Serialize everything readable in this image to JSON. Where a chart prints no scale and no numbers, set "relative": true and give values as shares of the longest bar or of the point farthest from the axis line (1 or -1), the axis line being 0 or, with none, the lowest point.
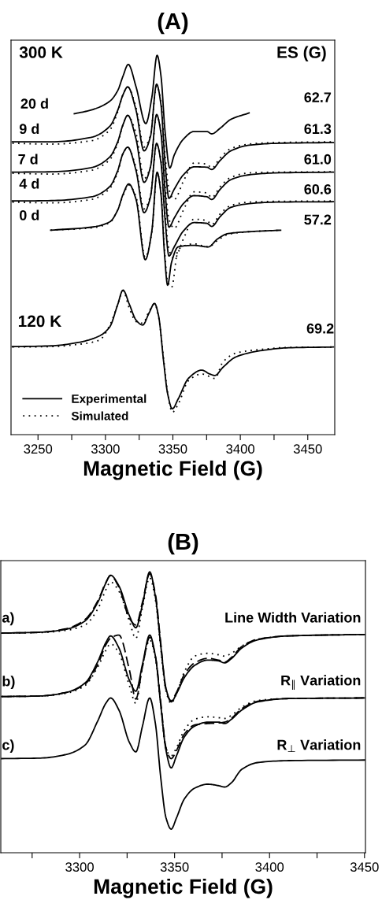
{
  "chart_data": [
    {
      "type": "line",
      "title": "(A)",
      "xlabel": "Magnetic Field (G)",
      "relative": true,
      "tick_labels": "x",
      "legend": "bottom left",
      "grid": false,
      "xlim": [
        3230,
        3470
      ],
      "xticks": [
        3250,
        {
          "value": 3275,
          "label": null
        },
        3300,
        {
          "value": 3325,
          "label": null
        },
        3350,
        {
          "value": 3375,
          "label": null
        },
        3400,
        {
          "value": 3425,
          "label": null
        },
        3450
      ],
      "annotations": [
        "300 K",
        "ES (G)",
        "20 d",
        "9 d",
        "7 d",
        "4 d",
        "0 d",
        "120 K",
        "62.7",
        "61.3",
        "61.0",
        "60.6",
        "57.2",
        "69.2"
      ],
      "series": [
        {
          "color": "#000000",
          "line_style": "solid",
          "x": [
            3276.9,
            3289.6,
            3303.2,
            3309.1,
            3313.0,
            3316.9,
            3322.7,
            3329.9,
            3334.4,
            3338.3,
            3341.2,
            3344.2,
            3347.7,
            3351.0,
            3357.8,
            3365.6,
            3375.3,
            3378.8,
            3385.1,
            3392.9,
            3406.5
          ],
          "values": [
            0.846,
            0.856,
            0.879,
            0.907,
            0.945,
            0.976,
            0.917,
            0.82,
            0.889,
            1.0,
            0.945,
            0.799,
            0.703,
            0.737,
            0.779,
            0.799,
            0.799,
            0.793,
            0.808,
            0.831,
            0.848
          ]
        },
        {
          "color": "#000000",
          "line_style": "solid",
          "x": [
            3231,
            3259.8,
            3289.6,
            3303.2,
            3309.1,
            3313.0,
            3316.5,
            3322.7,
            3328.6,
            3333.4,
            3337.9,
            3341.2,
            3344.2,
            3347.1,
            3351.0,
            3357.8,
            3365.6,
            3375.3,
            3378.8,
            3385.1,
            3392.9,
            3406.5,
            3426.0,
            3469
          ],
          "values": [
            0.772,
            0.772,
            0.784,
            0.813,
            0.855,
            0.896,
            0.917,
            0.855,
            0.748,
            0.786,
            0.924,
            0.869,
            0.716,
            0.623,
            0.647,
            0.685,
            0.706,
            0.705,
            0.699,
            0.723,
            0.748,
            0.763,
            0.768,
            0.77
          ]
        },
        {
          "color": "#000000",
          "line_style": "dotted",
          "x": [
            3231,
            3259.8,
            3289.6,
            3303.2,
            3309.1,
            3313.0,
            3316.5,
            3322.7,
            3328.6,
            3333.4,
            3337.9,
            3341.2,
            3344.2,
            3347.1,
            3351.0,
            3357.8,
            3365.6,
            3375.3,
            3378.8,
            3385.1,
            3392.9,
            3406.5,
            3426.0,
            3469
          ],
          "values": [
            0.768,
            0.766,
            0.775,
            0.803,
            0.851,
            0.896,
            0.916,
            0.862,
            0.758,
            0.789,
            0.92,
            0.876,
            0.737,
            0.647,
            0.62,
            0.668,
            0.716,
            0.713,
            0.703,
            0.73,
            0.754,
            0.766,
            0.77,
            0.772
          ]
        },
        {
          "color": "#000000",
          "line_style": "solid",
          "x": [
            3231,
            3259.8,
            3289.6,
            3303.2,
            3309.1,
            3313.0,
            3316.5,
            3322.7,
            3328.6,
            3333.4,
            3337.9,
            3341.2,
            3344.2,
            3347.1,
            3351.0,
            3357.8,
            3365.6,
            3375.3,
            3378.8,
            3385.1,
            3392.9,
            3406.5,
            3426.0,
            3469
          ],
          "values": [
            0.692,
            0.693,
            0.704,
            0.732,
            0.772,
            0.817,
            0.842,
            0.779,
            0.665,
            0.706,
            0.844,
            0.793,
            0.64,
            0.547,
            0.571,
            0.609,
            0.63,
            0.627,
            0.62,
            0.647,
            0.672,
            0.685,
            0.69,
            0.692
          ]
        },
        {
          "color": "#000000",
          "line_style": "dotted",
          "x": [
            3231,
            3259.8,
            3289.6,
            3303.2,
            3309.1,
            3313.0,
            3316.5,
            3322.7,
            3328.6,
            3333.4,
            3337.9,
            3341.2,
            3344.2,
            3347.1,
            3351.0,
            3357.8,
            3365.6,
            3375.3,
            3378.8,
            3385.1,
            3392.9,
            3406.5,
            3426.0,
            3469
          ],
          "values": [
            0.689,
            0.687,
            0.697,
            0.725,
            0.768,
            0.817,
            0.841,
            0.794,
            0.675,
            0.706,
            0.841,
            0.799,
            0.661,
            0.568,
            0.544,
            0.592,
            0.64,
            0.637,
            0.625,
            0.654,
            0.678,
            0.69,
            0.692,
            0.693
          ]
        },
        {
          "color": "#000000",
          "line_style": "solid",
          "x": [
            3231,
            3259.8,
            3289.6,
            3303.2,
            3309.1,
            3313.0,
            3316.5,
            3322.7,
            3328.6,
            3333.4,
            3337.9,
            3341.2,
            3344.2,
            3347.1,
            3351.0,
            3357.8,
            3365.6,
            3375.3,
            3378.8,
            3385.1,
            3392.9,
            3406.5,
            3426.0,
            3469
          ],
          "values": [
            0.616,
            0.617,
            0.627,
            0.654,
            0.696,
            0.741,
            0.758,
            0.696,
            0.585,
            0.627,
            0.768,
            0.716,
            0.568,
            0.471,
            0.495,
            0.537,
            0.559,
            0.557,
            0.549,
            0.575,
            0.599,
            0.609,
            0.613,
            0.614
          ]
        },
        {
          "color": "#000000",
          "line_style": "dotted",
          "x": [
            3231,
            3259.8,
            3289.6,
            3303.2,
            3309.1,
            3313.0,
            3316.5,
            3322.7,
            3328.6,
            3333.4,
            3337.9,
            3341.2,
            3344.2,
            3347.1,
            3351.0,
            3357.8,
            3365.6,
            3375.3,
            3378.8,
            3385.1,
            3392.9,
            3406.5,
            3426.0,
            3469
          ],
          "values": [
            0.613,
            0.611,
            0.62,
            0.649,
            0.692,
            0.741,
            0.757,
            0.703,
            0.595,
            0.63,
            0.765,
            0.723,
            0.585,
            0.488,
            0.464,
            0.516,
            0.568,
            0.564,
            0.554,
            0.582,
            0.604,
            0.613,
            0.615,
            0.616
          ]
        },
        {
          "color": "#000000",
          "line_style": "solid",
          "x": [
            3259.4,
            3289.6,
            3303.2,
            3309.1,
            3313.0,
            3317.3,
            3322.7,
            3329.5,
            3334.4,
            3338.3,
            3341.2,
            3343.8,
            3346.1,
            3349.0,
            3353.9,
            3365.6,
            3376.3,
            3383.1,
            3390.9,
            3406.5,
            3429.9
          ],
          "values": [
            0.539,
            0.547,
            0.561,
            0.592,
            0.633,
            0.661,
            0.62,
            0.461,
            0.537,
            0.692,
            0.633,
            0.475,
            0.394,
            0.454,
            0.495,
            0.499,
            0.495,
            0.516,
            0.53,
            0.535,
            0.539
          ]
        },
        {
          "color": "#000000",
          "line_style": "dotted",
          "x": [
            3259.4,
            3289.6,
            3303.2,
            3309.1,
            3313.0,
            3317.3,
            3322.7,
            3329.5,
            3334.4,
            3338.3,
            3341.2,
            3343.8,
            3346.1,
            3349.0,
            3353.9,
            3365.6,
            3376.3,
            3383.1,
            3390.9,
            3406.5,
            3429.9
          ],
          "values": [
            0.539,
            0.545,
            0.559,
            0.593,
            0.63,
            0.658,
            0.627,
            0.467,
            0.533,
            0.689,
            0.64,
            0.488,
            0.405,
            0.388,
            0.488,
            0.503,
            0.495,
            0.512,
            0.528,
            0.535,
            0.539
          ]
        },
        {
          "name": "Experimental",
          "color": "#000000",
          "line_style": "solid",
          "x": [
            3231,
            3259.8,
            3279.8,
            3295.4,
            3303.2,
            3309.1,
            3313.0,
            3317.8,
            3322.7,
            3327.6,
            3332.5,
            3336.4,
            3339.3,
            3343.2,
            3346.1,
            3349.6,
            3353.9,
            3361.7,
            3371.4,
            3377.3,
            3381.2,
            3387.0,
            3396.8,
            3416.3,
            3435.8,
            3469
          ],
          "values": [
            0.232,
            0.234,
            0.243,
            0.26,
            0.284,
            0.343,
            0.381,
            0.343,
            0.302,
            0.289,
            0.322,
            0.346,
            0.315,
            0.191,
            0.108,
            0.068,
            0.094,
            0.149,
            0.17,
            0.16,
            0.156,
            0.177,
            0.205,
            0.222,
            0.229,
            0.231
          ]
        },
        {
          "name": "Simulated",
          "color": "#000000",
          "line_style": "dotted",
          "x": [
            3231,
            3259.8,
            3279.8,
            3295.4,
            3303.2,
            3309.1,
            3313.0,
            3317.8,
            3322.7,
            3327.6,
            3332.5,
            3336.4,
            3339.3,
            3343.2,
            3346.1,
            3349.6,
            3353.9,
            3361.7,
            3371.4,
            3377.3,
            3381.2,
            3387.0,
            3396.8,
            3416.3,
            3435.8,
            3469
          ],
          "values": [
            0.231,
            0.232,
            0.238,
            0.249,
            0.288,
            0.343,
            0.379,
            0.332,
            0.298,
            0.294,
            0.326,
            0.345,
            0.312,
            0.198,
            0.111,
            0.059,
            0.08,
            0.143,
            0.16,
            0.153,
            0.148,
            0.191,
            0.215,
            0.225,
            0.23,
            0.231
          ]
        }
      ]
    },
    {
      "type": "line",
      "title": "(B)",
      "xlabel": "Magnetic Field (G)",
      "relative": true,
      "tick_labels": "x",
      "grid": false,
      "xlim": [
        3258.5,
        3450.5
      ],
      "xticks": [
        {
          "value": 3275,
          "label": null
        },
        3300,
        {
          "value": 3325,
          "label": null
        },
        3350,
        {
          "value": 3375,
          "label": null
        },
        3400,
        {
          "value": 3425,
          "label": null
        },
        3450
      ],
      "annotations": [
        "a)",
        "b)",
        "c)",
        "Line Width Variation",
        "R$_{∥}$ Variation",
        "R$_{⊥}$ Variation"
      ],
      "series": [
        {
          "color": "#000000",
          "line_style": "solid",
          "x": [
            3259,
            3279.3,
            3293.1,
            3302.8,
            3309.6,
            3313.8,
            3316.3,
            3320.7,
            3326.2,
            3329.6,
            3333.1,
            3336.9,
            3339.9,
            3342.7,
            3345.5,
            3348.2,
            3351.0,
            3355.1,
            3360.6,
            3367.5,
            3373.0,
            3376.4,
            3379.9,
            3385.4,
            3393.7,
            3410.2,
            3450
          ],
          "values": [
            0.782,
            0.785,
            0.796,
            0.825,
            0.892,
            0.96,
            0.988,
            0.95,
            0.844,
            0.801,
            0.883,
            1.0,
            0.912,
            0.739,
            0.585,
            0.537,
            0.566,
            0.623,
            0.667,
            0.686,
            0.683,
            0.676,
            0.691,
            0.729,
            0.758,
            0.772,
            0.777
          ]
        },
        {
          "color": "#000000",
          "line_style": "dashed",
          "x": [
            3259,
            3279.3,
            3293.1,
            3302.8,
            3309.6,
            3313.8,
            3316.3,
            3320.7,
            3326.2,
            3329.6,
            3333.1,
            3336.9,
            3339.9,
            3342.7,
            3345.5,
            3348.2,
            3351.0,
            3355.1,
            3360.6,
            3367.5,
            3373.0,
            3376.4,
            3379.9,
            3385.4,
            3393.7,
            3410.2,
            3450
          ],
          "values": [
            0.782,
            0.785,
            0.798,
            0.83,
            0.897,
            0.962,
            0.987,
            0.945,
            0.835,
            0.811,
            0.892,
            0.993,
            0.921,
            0.748,
            0.58,
            0.541,
            0.571,
            0.634,
            0.676,
            0.692,
            0.686,
            0.679,
            0.695,
            0.734,
            0.76,
            0.772,
            0.777
          ]
        },
        {
          "color": "#000000",
          "line_style": "dotted",
          "x": [
            3259,
            3279.3,
            3293.1,
            3302.8,
            3309.6,
            3313.8,
            3316.3,
            3320.7,
            3326.2,
            3329.6,
            3333.1,
            3336.9,
            3339.9,
            3342.7,
            3345.5,
            3348.2,
            3351.0,
            3355.1,
            3360.6,
            3367.5,
            3373.0,
            3376.4,
            3379.9,
            3385.4,
            3393.7,
            3410.2,
            3450
          ],
          "values": [
            0.782,
            0.784,
            0.792,
            0.811,
            0.868,
            0.936,
            0.964,
            0.931,
            0.825,
            0.763,
            0.873,
            0.979,
            0.902,
            0.729,
            0.575,
            0.532,
            0.566,
            0.643,
            0.7,
            0.71,
            0.705,
            0.7,
            0.71,
            0.736,
            0.76,
            0.772,
            0.777
          ]
        },
        {
          "color": "#000000",
          "line_style": "solid",
          "x": [
            3259,
            3279.3,
            3293.1,
            3302.8,
            3309.6,
            3313.8,
            3316.3,
            3320.7,
            3326.2,
            3329.6,
            3333.1,
            3336.9,
            3339.9,
            3342.7,
            3345.5,
            3348.2,
            3351.0,
            3355.1,
            3360.6,
            3367.5,
            3373.0,
            3376.4,
            3379.9,
            3385.4,
            3393.7,
            3410.2,
            3450
          ],
          "values": [
            0.556,
            0.558,
            0.571,
            0.604,
            0.681,
            0.748,
            0.772,
            0.729,
            0.614,
            0.575,
            0.671,
            0.775,
            0.7,
            0.527,
            0.364,
            0.302,
            0.345,
            0.412,
            0.451,
            0.465,
            0.465,
            0.46,
            0.475,
            0.508,
            0.537,
            0.549,
            0.551
          ]
        },
        {
          "color": "#000000",
          "line_style": "dashed",
          "x": [
            3259,
            3279.3,
            3293.1,
            3302.8,
            3309.6,
            3313.8,
            3316.3,
            3320.7,
            3326.2,
            3329.6,
            3333.1,
            3336.9,
            3339.9,
            3342.7,
            3345.5,
            3348.2,
            3351.0,
            3355.1,
            3360.6,
            3367.5,
            3373.0,
            3376.4,
            3379.9,
            3385.4,
            3393.7,
            3410.2,
            3450
          ],
          "values": [
            0.556,
            0.558,
            0.571,
            0.6,
            0.671,
            0.74,
            0.764,
            0.775,
            0.651,
            0.547,
            0.662,
            0.767,
            0.7,
            0.537,
            0.374,
            0.335,
            0.364,
            0.422,
            0.455,
            0.46,
            0.462,
            0.465,
            0.479,
            0.513,
            0.539,
            0.549,
            0.551
          ]
        },
        {
          "color": "#000000",
          "line_style": "dotted",
          "x": [
            3259,
            3279.3,
            3293.1,
            3302.8,
            3309.6,
            3313.8,
            3316.3,
            3320.7,
            3326.2,
            3329.6,
            3333.1,
            3336.9,
            3339.9,
            3342.7,
            3345.5,
            3348.2,
            3351.0,
            3355.1,
            3360.6,
            3367.5,
            3373.0,
            3376.4,
            3379.9,
            3385.4,
            3393.7,
            3410.2,
            3450
          ],
          "values": [
            0.556,
            0.558,
            0.568,
            0.595,
            0.662,
            0.72,
            0.744,
            0.711,
            0.595,
            0.532,
            0.662,
            0.758,
            0.694,
            0.527,
            0.369,
            0.345,
            0.374,
            0.436,
            0.475,
            0.484,
            0.481,
            0.478,
            0.489,
            0.518,
            0.542,
            0.549,
            0.551
          ]
        },
        {
          "color": "#000000",
          "line_style": "solid",
          "x": [
            3259,
            3279.3,
            3293.1,
            3302.8,
            3309.6,
            3313.8,
            3316.3,
            3320.7,
            3326.2,
            3329.6,
            3333.1,
            3336.9,
            3339.9,
            3342.7,
            3345.5,
            3348.2,
            3351.0,
            3355.1,
            3360.6,
            3367.5,
            3373.0,
            3376.4,
            3379.9,
            3385.4,
            3393.7,
            3410.2,
            3450
          ],
          "values": [
            0.335,
            0.337,
            0.35,
            0.383,
            0.47,
            0.532,
            0.551,
            0.508,
            0.393,
            0.359,
            0.451,
            0.551,
            0.46,
            0.268,
            0.124,
            0.084,
            0.124,
            0.191,
            0.23,
            0.244,
            0.239,
            0.234,
            0.249,
            0.297,
            0.321,
            0.328,
            0.33
          ]
        }
      ]
    }
  ]
}
